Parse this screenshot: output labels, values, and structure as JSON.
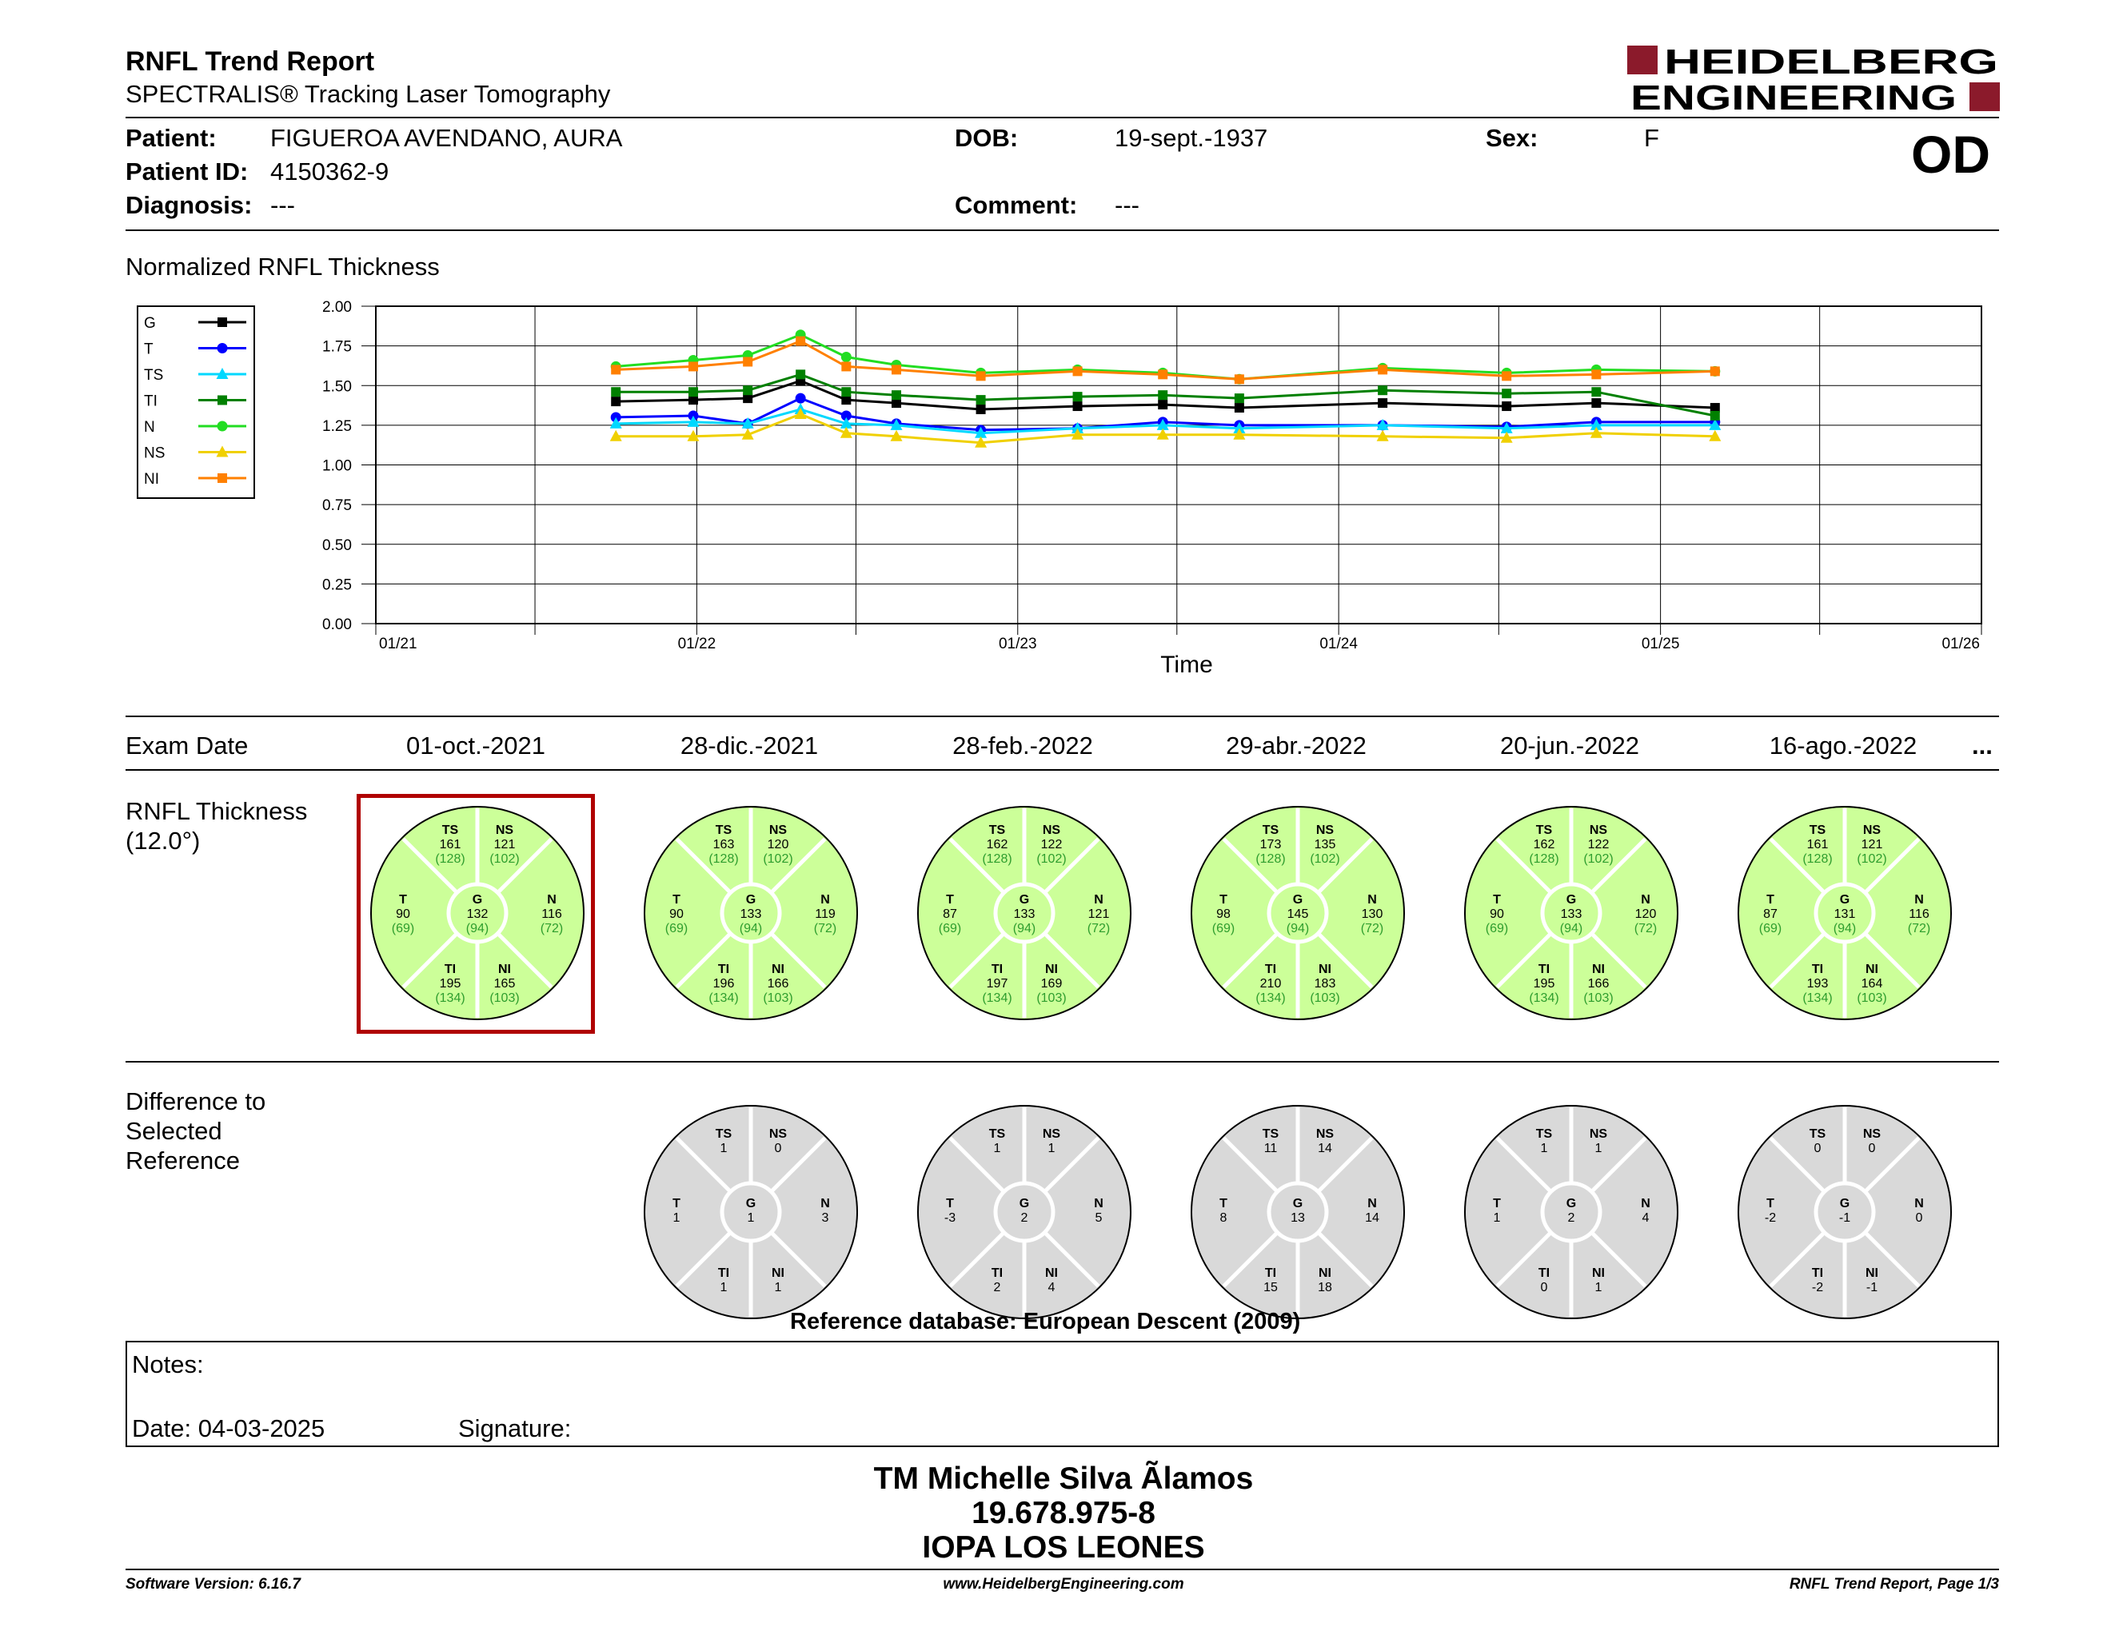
{
  "header": {
    "title": "RNFL Trend Report",
    "subtitle": "SPECTRALIS® Tracking Laser Tomography",
    "logo_line1": "HEIDELBERG",
    "logo_line2": "ENGINEERING",
    "eye": "OD"
  },
  "patient": {
    "patient_label": "Patient:",
    "patient_value": "FIGUEROA AVENDANO, AURA",
    "id_label": "Patient ID:",
    "id_value": "4150362-9",
    "diagnosis_label": "Diagnosis:",
    "diagnosis_value": "---",
    "dob_label": "DOB:",
    "dob_value": "19-sept.-1937",
    "comment_label": "Comment:",
    "comment_value": "---",
    "sex_label": "Sex:",
    "sex_value": "F"
  },
  "chart_data": {
    "type": "line",
    "title": "Normalized RNFL Thickness",
    "xlabel": "Time",
    "ylabel": "",
    "ylim": [
      0,
      2
    ],
    "yticks": [
      "0.00",
      "0.25",
      "0.50",
      "0.75",
      "1.00",
      "1.25",
      "1.50",
      "1.75",
      "2.00"
    ],
    "xlim": [
      "2021-01-01",
      "2026-01-01"
    ],
    "xticks": [
      "01/21",
      "01/22",
      "01/23",
      "01/24",
      "01/25",
      "01/26"
    ],
    "grid": true,
    "legend_position": "top-left",
    "dates": [
      "2021-10-01",
      "2021-12-28",
      "2022-02-28",
      "2022-04-29",
      "2022-06-20",
      "2022-08-16",
      "2022-11-20",
      "2023-03-10",
      "2023-06-15",
      "2023-09-10",
      "2024-02-20",
      "2024-07-10",
      "2024-10-20",
      "2025-03-04"
    ],
    "series": [
      {
        "name": "G",
        "color": "#000000",
        "marker": "square",
        "values": [
          1.4,
          1.41,
          1.42,
          1.53,
          1.41,
          1.39,
          1.35,
          1.37,
          1.38,
          1.36,
          1.39,
          1.37,
          1.39,
          1.36
        ]
      },
      {
        "name": "T",
        "color": "#0000ff",
        "marker": "circle",
        "values": [
          1.3,
          1.31,
          1.26,
          1.42,
          1.31,
          1.26,
          1.22,
          1.23,
          1.27,
          1.25,
          1.25,
          1.24,
          1.27,
          1.27
        ]
      },
      {
        "name": "TS",
        "color": "#00d8ff",
        "marker": "triangle",
        "values": [
          1.26,
          1.27,
          1.26,
          1.35,
          1.26,
          1.25,
          1.2,
          1.23,
          1.25,
          1.23,
          1.25,
          1.23,
          1.25,
          1.25
        ]
      },
      {
        "name": "TI",
        "color": "#008000",
        "marker": "square",
        "values": [
          1.46,
          1.46,
          1.47,
          1.57,
          1.46,
          1.44,
          1.41,
          1.43,
          1.44,
          1.42,
          1.47,
          1.45,
          1.46,
          1.31
        ]
      },
      {
        "name": "N",
        "color": "#22dd22",
        "marker": "circle",
        "values": [
          1.62,
          1.66,
          1.69,
          1.82,
          1.68,
          1.63,
          1.58,
          1.6,
          1.58,
          1.54,
          1.61,
          1.58,
          1.6,
          1.59
        ]
      },
      {
        "name": "NS",
        "color": "#f0d000",
        "marker": "triangle",
        "values": [
          1.18,
          1.18,
          1.19,
          1.32,
          1.2,
          1.18,
          1.14,
          1.19,
          1.19,
          1.19,
          1.18,
          1.17,
          1.2,
          1.18
        ]
      },
      {
        "name": "NI",
        "color": "#ff8000",
        "marker": "square",
        "values": [
          1.6,
          1.62,
          1.65,
          1.78,
          1.62,
          1.6,
          1.56,
          1.59,
          1.57,
          1.54,
          1.6,
          1.56,
          1.57,
          1.59
        ]
      }
    ]
  },
  "exams": {
    "label": "Exam Date",
    "more": "...",
    "dates": [
      "01-oct.-2021",
      "28-dic.-2021",
      "28-feb.-2022",
      "29-abr.-2022",
      "20-jun.-2022",
      "16-ago.-2022"
    ]
  },
  "rnfl": {
    "label_line1": "RNFL Thickness",
    "label_line2": "(12.0°)",
    "fill_color": "#ccff99",
    "norm_color": "#2e9d2e",
    "charts": [
      {
        "G": "132",
        "T": "90",
        "TS": "161",
        "NS": "121",
        "N": "116",
        "NI": "165",
        "TI": "195"
      },
      {
        "G": "133",
        "T": "90",
        "TS": "163",
        "NS": "120",
        "N": "119",
        "NI": "166",
        "TI": "196"
      },
      {
        "G": "133",
        "T": "87",
        "TS": "162",
        "NS": "122",
        "N": "121",
        "NI": "169",
        "TI": "197"
      },
      {
        "G": "145",
        "T": "98",
        "TS": "173",
        "NS": "135",
        "N": "130",
        "NI": "183",
        "TI": "210"
      },
      {
        "G": "133",
        "T": "90",
        "TS": "162",
        "NS": "122",
        "N": "120",
        "NI": "166",
        "TI": "195"
      },
      {
        "G": "131",
        "T": "87",
        "TS": "161",
        "NS": "121",
        "N": "116",
        "NI": "164",
        "TI": "193"
      }
    ],
    "norms": {
      "G": "(94)",
      "T": "(69)",
      "TS": "(128)",
      "NS": "(102)",
      "N": "(72)",
      "NI": "(103)",
      "TI": "(134)"
    }
  },
  "difference": {
    "label_line1": "Difference to",
    "label_line2": "Selected",
    "label_line3": "Reference",
    "fill_color": "#d9d9d9",
    "charts": [
      {
        "G": "1",
        "T": "1",
        "TS": "1",
        "NS": "0",
        "N": "3",
        "NI": "1",
        "TI": "1"
      },
      {
        "G": "2",
        "T": "-3",
        "TS": "1",
        "NS": "1",
        "N": "5",
        "NI": "4",
        "TI": "2"
      },
      {
        "G": "13",
        "T": "8",
        "TS": "11",
        "NS": "14",
        "N": "14",
        "NI": "18",
        "TI": "15"
      },
      {
        "G": "2",
        "T": "1",
        "TS": "1",
        "NS": "1",
        "N": "4",
        "NI": "1",
        "TI": "0"
      },
      {
        "G": "-1",
        "T": "-2",
        "TS": "0",
        "NS": "0",
        "N": "0",
        "NI": "-1",
        "TI": "-2"
      }
    ],
    "reference_db": "Reference database: European Descent (2009)"
  },
  "notes": {
    "notes_label": "Notes:",
    "date_label": "Date: 04-03-2025",
    "signature_label": "Signature:"
  },
  "stamp": {
    "line1": "TM Michelle Silva Ãlamos",
    "line2": "19.678.975-8",
    "line3": "IOPA LOS LEONES"
  },
  "footer": {
    "software": "Software Version: 6.16.7",
    "website": "www.HeidelbergEngineering.com",
    "page": "RNFL Trend Report, Page 1/3"
  },
  "colors": {
    "selected_frame": "#b00000",
    "logo_red": "#8b1a2b"
  }
}
